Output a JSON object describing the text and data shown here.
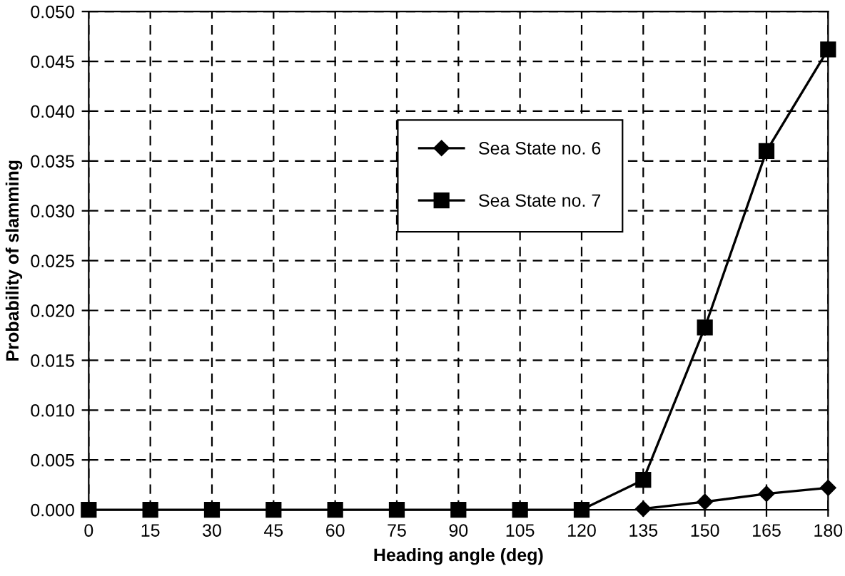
{
  "chart_data": {
    "type": "line",
    "xlabel": "Heading angle (deg)",
    "ylabel": "Probability of slamming",
    "x": [
      0,
      15,
      30,
      45,
      60,
      75,
      90,
      105,
      120,
      135,
      150,
      165,
      180
    ],
    "series": [
      {
        "name": "Sea State no. 6",
        "color": "#000000",
        "marker": "diamond",
        "values": [
          null,
          null,
          null,
          null,
          null,
          null,
          null,
          null,
          null,
          0.0001,
          0.0008,
          0.0016,
          0.0022
        ]
      },
      {
        "name": "Sea State no. 7",
        "color": "#000000",
        "marker": "square",
        "values": [
          0,
          0,
          0,
          0,
          0,
          0,
          0,
          0,
          0,
          0.003,
          0.0183,
          0.036,
          0.0462
        ]
      }
    ],
    "xlim": [
      0,
      180
    ],
    "xticks": [
      0,
      15,
      30,
      45,
      60,
      75,
      90,
      105,
      120,
      135,
      150,
      165,
      180
    ],
    "ylim": [
      0,
      0.05
    ],
    "yticks": [
      {
        "value": 0,
        "label": "0.000"
      },
      {
        "value": 0.005,
        "label": "0.005"
      },
      {
        "value": 0.01,
        "label": "0.010"
      },
      {
        "value": 0.015,
        "label": "0.015"
      },
      {
        "value": 0.02,
        "label": "0.020"
      },
      {
        "value": 0.025,
        "label": "0.025"
      },
      {
        "value": 0.03,
        "label": "0.030"
      },
      {
        "value": 0.035,
        "label": "0.035"
      },
      {
        "value": 0.04,
        "label": "0.040"
      },
      {
        "value": 0.045,
        "label": "0.045"
      },
      {
        "value": 0.05,
        "label": "0.050"
      }
    ],
    "grid": true,
    "legend": "top center",
    "line_style": "solid"
  }
}
